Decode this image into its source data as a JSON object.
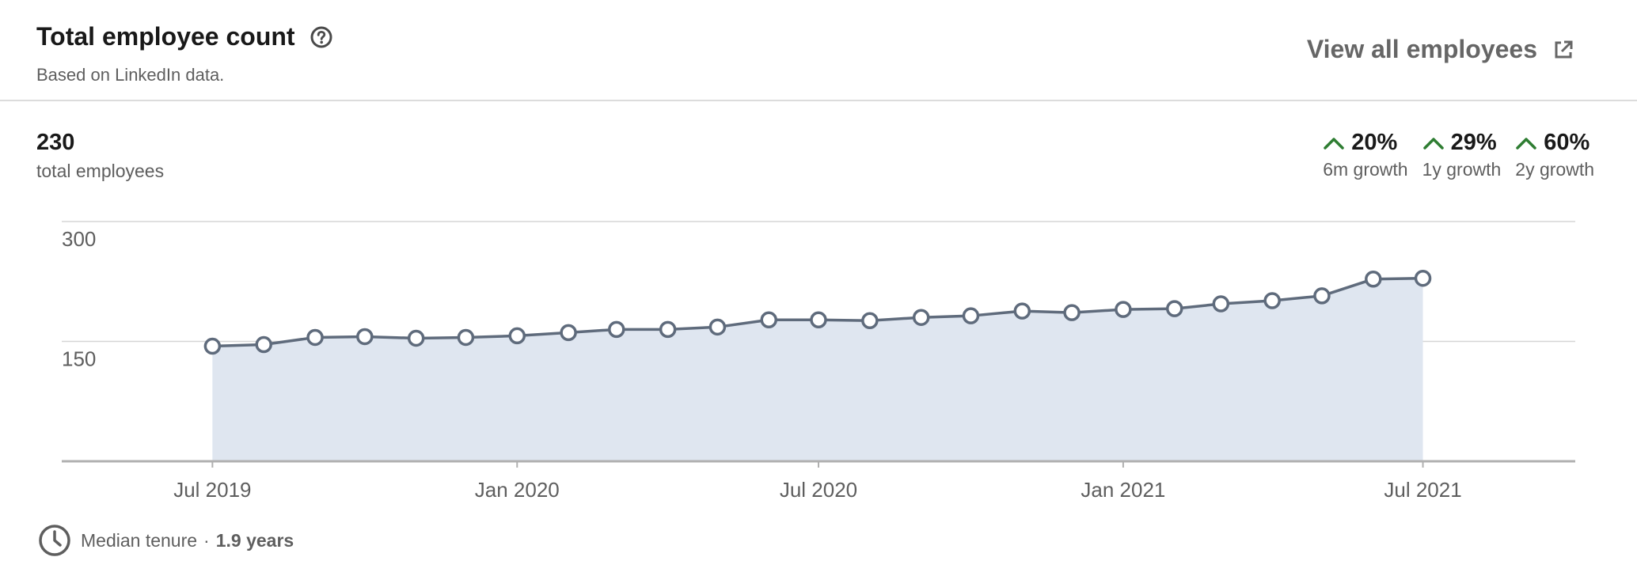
{
  "header": {
    "title": "Total employee count",
    "subtitle": "Based on LinkedIn data.",
    "view_all_label": "View all employees",
    "help_icon": "question-circle-icon",
    "external_icon": "external-link-icon"
  },
  "summary": {
    "total_value": "230",
    "total_label": "total employees",
    "growth": [
      {
        "value": "20%",
        "label": "6m growth",
        "icon": "caret-up-icon"
      },
      {
        "value": "29%",
        "label": "1y growth",
        "icon": "caret-up-icon"
      },
      {
        "value": "60%",
        "label": "2y growth",
        "icon": "caret-up-icon"
      }
    ]
  },
  "footer": {
    "tenure_label": "Median tenure",
    "tenure_separator": "·",
    "tenure_value": "1.9 years",
    "icon": "clock-icon"
  },
  "colors": {
    "line": "#5f6b7c",
    "area": "#dfe6f0",
    "growth_positive": "#2e7d32",
    "grid": "#d6d6d6",
    "axis": "#b0b0b0"
  },
  "chart_data": {
    "type": "area",
    "title": "",
    "xlabel": "",
    "ylabel": "",
    "ylim": [
      0,
      300
    ],
    "xlim": [
      "2019-04-01",
      "2021-10-01"
    ],
    "yticks": [
      150,
      300
    ],
    "xticks": [
      {
        "date": "2019-07-01",
        "label": "Jul 2019"
      },
      {
        "date": "2020-01-01",
        "label": "Jan 2020"
      },
      {
        "date": "2020-07-01",
        "label": "Jul 2020"
      },
      {
        "date": "2021-01-01",
        "label": "Jan 2021"
      },
      {
        "date": "2021-07-01",
        "label": "Jul 2021"
      }
    ],
    "grid": true,
    "series": [
      {
        "name": "",
        "x": [
          "2019-07-01",
          "2019-08-01",
          "2019-09-01",
          "2019-10-01",
          "2019-11-01",
          "2019-12-01",
          "2020-01-01",
          "2020-02-01",
          "2020-03-01",
          "2020-04-01",
          "2020-05-01",
          "2020-06-01",
          "2020-07-01",
          "2020-08-01",
          "2020-09-01",
          "2020-10-01",
          "2020-11-01",
          "2020-12-01",
          "2021-01-01",
          "2021-02-01",
          "2021-03-01",
          "2021-04-01",
          "2021-05-01",
          "2021-06-01",
          "2021-07-01"
        ],
        "y": [
          144,
          146,
          155,
          156,
          154,
          155,
          157,
          161,
          165,
          165,
          168,
          177,
          177,
          176,
          180,
          182,
          188,
          186,
          190,
          191,
          197,
          201,
          207,
          228,
          229
        ]
      }
    ]
  }
}
